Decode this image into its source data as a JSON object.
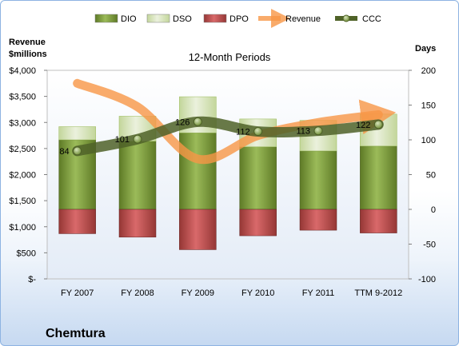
{
  "chart_data": {
    "type": "bar",
    "title": "12-Month Periods",
    "company": "Chemtura",
    "ylabel_left": [
      "Revenue",
      "$millions"
    ],
    "ylabel_right": "Days",
    "categories": [
      "FY 2007",
      "FY 2008",
      "FY 2009",
      "FY 2010",
      "FY 2011",
      "TTM 9-2012"
    ],
    "left_axis": {
      "ylim": [
        0,
        4000
      ],
      "ticks": [
        0,
        500,
        1000,
        1500,
        2000,
        2500,
        3000,
        3500,
        4000
      ],
      "tick_labels": [
        "$-",
        "$500",
        "$1,000",
        "$1,500",
        "$2,000",
        "$2,500",
        "$3,000",
        "$3,500",
        "$4,000"
      ]
    },
    "right_axis": {
      "ylim": [
        -100,
        200
      ],
      "ticks": [
        -100,
        -50,
        0,
        50,
        100,
        150,
        200
      ],
      "tick_labels": [
        "-100",
        "-50",
        "0",
        "50",
        "100",
        "150",
        "200"
      ]
    },
    "series": [
      {
        "name": "DIO",
        "kind": "bar",
        "axis": "right",
        "values": [
          100,
          98,
          110,
          90,
          84,
          91
        ]
      },
      {
        "name": "DSO",
        "kind": "bar",
        "axis": "right",
        "values": [
          19,
          36,
          52,
          40,
          44,
          46
        ]
      },
      {
        "name": "DPO",
        "kind": "bar",
        "axis": "right",
        "values": [
          35,
          40,
          58,
          38,
          30,
          34
        ]
      },
      {
        "name": "Revenue",
        "kind": "line",
        "axis": "left",
        "values": [
          3750,
          3300,
          2300,
          2750,
          3000,
          3150
        ]
      },
      {
        "name": "CCC",
        "kind": "line",
        "axis": "right",
        "values": [
          84,
          101,
          126,
          112,
          113,
          122
        ],
        "labels": [
          "84",
          "101",
          "126",
          "112",
          "113",
          "122"
        ]
      }
    ],
    "legend": {
      "placement": "top",
      "entries": [
        {
          "name": "DIO",
          "color": "#77933c"
        },
        {
          "name": "DSO",
          "color": "#d7e4bd"
        },
        {
          "name": "DPO",
          "color": "#c0504d"
        },
        {
          "name": "Revenue",
          "color": "#f79646"
        },
        {
          "name": "CCC",
          "color": "#4f6228"
        }
      ]
    },
    "grid": false,
    "colors": {
      "dio": "#77933c",
      "dso": "#d7e4bd",
      "dpo": "#c0504d",
      "revenue": "#f79646",
      "ccc": "#4f6228"
    }
  }
}
